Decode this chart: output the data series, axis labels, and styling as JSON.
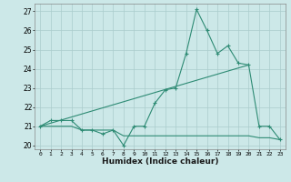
{
  "xlabel": "Humidex (Indice chaleur)",
  "x_values": [
    0,
    1,
    2,
    3,
    4,
    5,
    6,
    7,
    8,
    9,
    10,
    11,
    12,
    13,
    14,
    15,
    16,
    17,
    18,
    19,
    20,
    21,
    22,
    23
  ],
  "main_line": [
    21.0,
    21.3,
    21.3,
    21.3,
    20.8,
    20.8,
    20.6,
    20.8,
    20.0,
    21.0,
    21.0,
    22.2,
    22.9,
    23.0,
    24.8,
    27.1,
    26.0,
    24.8,
    25.2,
    24.3,
    24.2,
    21.0,
    21.0,
    20.3
  ],
  "low_line": [
    21.0,
    21.0,
    21.0,
    21.0,
    20.8,
    20.8,
    20.8,
    20.8,
    20.5,
    20.5,
    20.5,
    20.5,
    20.5,
    20.5,
    20.5,
    20.5,
    20.5,
    20.5,
    20.5,
    20.5,
    20.5,
    20.4,
    20.4,
    20.3
  ],
  "trend_line_x": [
    0,
    20
  ],
  "trend_line_y": [
    21.0,
    24.2
  ],
  "line_color": "#2e8b74",
  "bg_color": "#cce8e8",
  "grid_color": "#aacccc",
  "ylim": [
    19.8,
    27.4
  ],
  "yticks": [
    20,
    21,
    22,
    23,
    24,
    25,
    26,
    27
  ],
  "xlim": [
    -0.5,
    23.5
  ]
}
